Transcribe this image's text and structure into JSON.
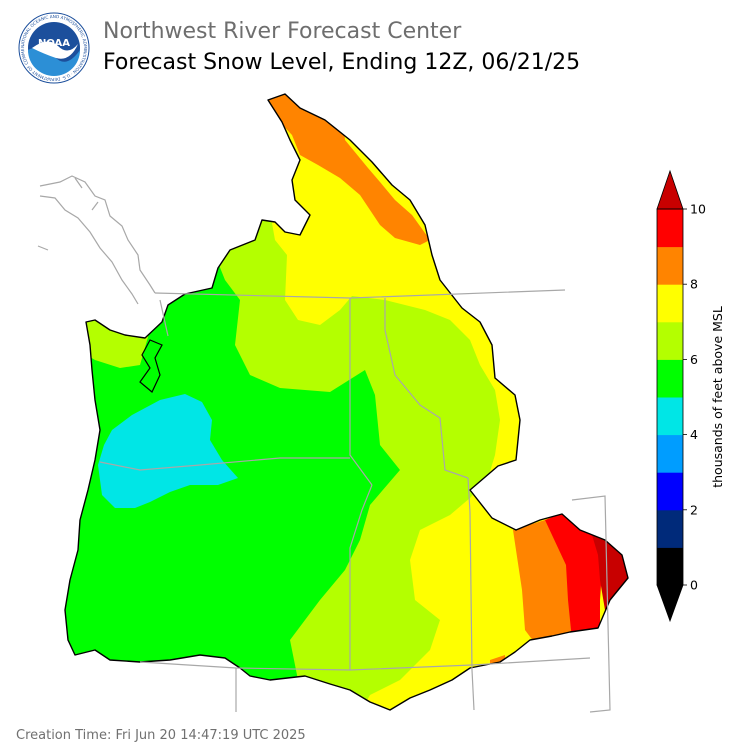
{
  "header": {
    "agency": "Northwest River Forecast Center",
    "product": "Forecast Snow Level, Ending 12Z, 06/21/25",
    "logo": {
      "center_text": "NOAA",
      "ring_text": "NATIONAL OCEANIC AND ATMOSPHERIC ADMINISTRATION · U.S. DEPARTMENT OF COMMERCE",
      "colors": {
        "ring": "#ffffff",
        "sky": "#1c4f9c",
        "sea": "#2c8fd6",
        "bird": "#ffffff"
      }
    }
  },
  "map": {
    "region": "Columbia River Basin and Pacific Northwest",
    "colors": {
      "boundary": "#000000",
      "state_lines": "#a8a8a8",
      "coastline": "#a8a8a8"
    }
  },
  "colorbar": {
    "label": "thousands of feet above MSL",
    "ticks": [
      "0",
      "2",
      "4",
      "6",
      "8",
      "10"
    ],
    "bins": [
      {
        "color": "#000000"
      },
      {
        "color": "#002a7a"
      },
      {
        "color": "#0000ff"
      },
      {
        "color": "#009dff"
      },
      {
        "color": "#00e6e6"
      },
      {
        "color": "#00ff00"
      },
      {
        "color": "#b4ff00"
      },
      {
        "color": "#ffff00"
      },
      {
        "color": "#ff8400"
      },
      {
        "color": "#ff0000"
      }
    ],
    "extend_low": "#000000",
    "extend_high": "#c80000"
  },
  "footer": {
    "creation": "Creation Time: Fri Jun 20 14:47:19 UTC 2025"
  }
}
